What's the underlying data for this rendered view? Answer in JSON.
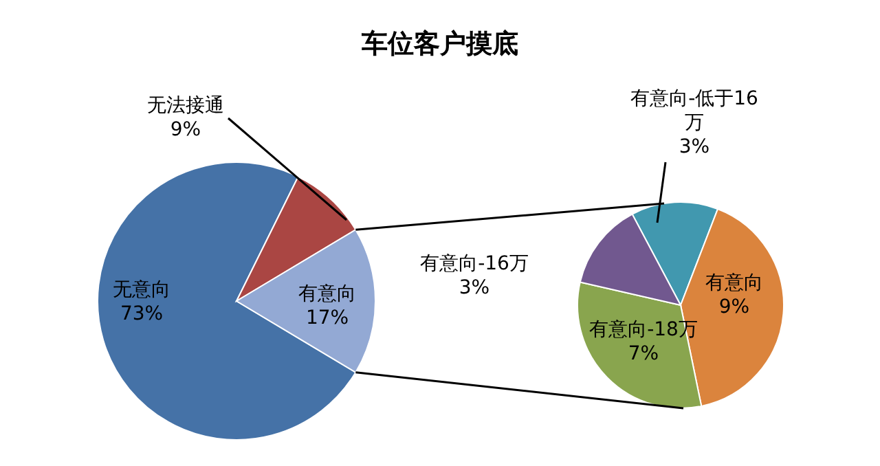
{
  "chart_data": [
    {
      "type": "pie",
      "title": "车位客户摸底",
      "categories": [
        "无意向",
        "无法接通",
        "有意向"
      ],
      "values": [
        73,
        9,
        17
      ],
      "colors": [
        "#4572a7",
        "#aa4643",
        "#93a9d4"
      ],
      "value_labels": [
        "73%",
        "9%",
        "17%"
      ]
    },
    {
      "type": "pie",
      "categories": [
        "有意向-低于16万",
        "有意向",
        "有意向-18万",
        "有意向-16万"
      ],
      "values": [
        3,
        9,
        7,
        3
      ],
      "colors": [
        "#4198af",
        "#db843d",
        "#89a54e",
        "#71588f"
      ],
      "value_labels": [
        "3%",
        "9%",
        "7%",
        "3%"
      ]
    }
  ]
}
